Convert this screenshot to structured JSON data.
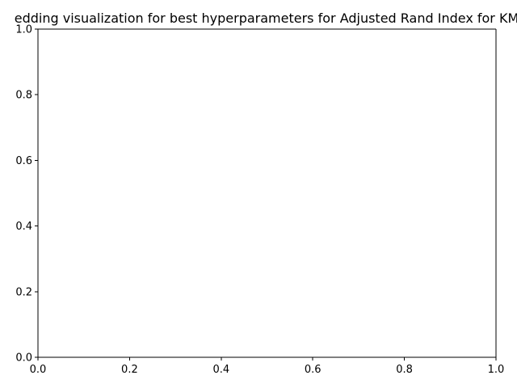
{
  "chart_data": {
    "type": "scatter",
    "title": "edding visualization for best hyperparameters for Adjusted Rand Index for KM",
    "xlabel": "",
    "ylabel": "",
    "xlim": [
      0.0,
      1.0
    ],
    "ylim": [
      0.0,
      1.0
    ],
    "x_ticks": [
      0.0,
      0.2,
      0.4,
      0.6,
      0.8,
      1.0
    ],
    "x_tick_labels": [
      "0.0",
      "0.2",
      "0.4",
      "0.6",
      "0.8",
      "1.0"
    ],
    "y_ticks": [
      0.0,
      0.2,
      0.4,
      0.6,
      0.8,
      1.0
    ],
    "y_tick_labels": [
      "0.0",
      "0.2",
      "0.4",
      "0.6",
      "0.8",
      "1.0"
    ],
    "grid": false,
    "series": []
  }
}
